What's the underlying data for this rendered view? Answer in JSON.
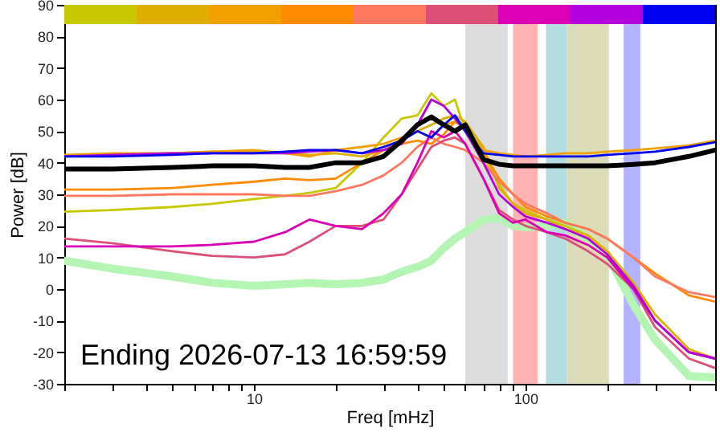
{
  "chart_data": {
    "type": "line",
    "xlabel": "Freq [mHz]",
    "ylabel": "Power [dB]",
    "log": "x",
    "annotations": [
      "Ending 2026-07-13 16:59:59"
    ],
    "xlim": [
      2,
      500
    ],
    "ylim": [
      -30,
      90
    ],
    "xticks": [
      {
        "value": 2,
        "label": null
      },
      {
        "value": 3,
        "label": null
      },
      {
        "value": 4,
        "label": null
      },
      {
        "value": 5,
        "label": null
      },
      {
        "value": 6,
        "label": null
      },
      {
        "value": 7,
        "label": null
      },
      {
        "value": 8,
        "label": null
      },
      {
        "value": 9,
        "label": null
      },
      10,
      {
        "value": 20,
        "label": null
      },
      {
        "value": 30,
        "label": null
      },
      {
        "value": 40,
        "label": null
      },
      {
        "value": 50,
        "label": null
      },
      {
        "value": 60,
        "label": null
      },
      {
        "value": 70,
        "label": null
      },
      {
        "value": 80,
        "label": null
      },
      {
        "value": 90,
        "label": null
      },
      100,
      {
        "value": 200,
        "label": null
      },
      {
        "value": 300,
        "label": null
      },
      {
        "value": 400,
        "label": null
      },
      {
        "value": 500,
        "label": null
      }
    ],
    "yticks": [
      -30,
      -20,
      -10,
      0,
      10,
      20,
      30,
      40,
      50,
      60,
      70,
      80,
      90
    ],
    "bands": [
      {
        "axis": "x",
        "from": 60,
        "to": 86,
        "color": "#dcdcdc"
      },
      {
        "axis": "x",
        "from": 90,
        "to": 111,
        "color": "#ffb3b3"
      },
      {
        "axis": "x",
        "from": 119,
        "to": 142,
        "color": "#b3dde0"
      },
      {
        "axis": "x",
        "from": 142,
        "to": 203,
        "color": "#dcdcb8"
      },
      {
        "axis": "x",
        "from": 230,
        "to": 265,
        "color": "#b3b3ff"
      }
    ],
    "x": [
      2,
      3,
      5,
      7,
      10,
      13,
      16,
      20,
      25,
      30,
      35,
      40,
      45,
      50,
      55,
      60,
      70,
      80,
      90,
      100,
      120,
      140,
      170,
      200,
      250,
      300,
      400,
      500
    ],
    "series": [
      {
        "color": "#b4f5b4",
        "values": [
          9,
          6.5,
          4,
          2,
          1,
          1.5,
          2,
          1.5,
          2,
          3,
          5.5,
          7,
          9,
          13,
          16,
          18,
          22,
          22.5,
          20,
          19.5,
          20,
          21,
          16,
          11,
          -5,
          -16,
          -27.5,
          -28
        ]
      },
      {
        "color": "#c8c800",
        "values": [
          24.5,
          25,
          26,
          27,
          28.5,
          29.5,
          30.5,
          32,
          40,
          48,
          54,
          55,
          62,
          58,
          60,
          50,
          42,
          33,
          27,
          25,
          22,
          20,
          17,
          12,
          2,
          -10,
          -20,
          -22
        ]
      },
      {
        "color": "#dcaf00",
        "values": [
          42,
          42.5,
          43,
          43.5,
          43.5,
          43,
          42.5,
          43,
          42,
          44,
          47,
          50,
          52,
          54,
          55,
          53,
          45,
          32,
          27,
          24,
          22,
          19,
          17,
          12,
          2,
          -8,
          -19,
          -22
        ]
      },
      {
        "color": "#f0a000",
        "values": [
          42.5,
          43,
          43,
          43.5,
          44,
          43,
          42,
          44,
          45,
          46,
          48,
          50,
          48,
          52,
          53,
          51,
          44,
          43,
          42.5,
          42,
          42.5,
          43,
          43,
          43.5,
          44,
          44.5,
          45.5,
          47
        ]
      },
      {
        "color": "#ff8c00",
        "values": [
          31.5,
          31.5,
          32,
          33,
          34,
          35,
          34.5,
          35,
          40,
          44,
          46,
          47,
          46,
          49,
          53,
          51,
          43,
          35,
          30,
          26,
          23,
          21,
          19,
          16,
          10,
          5,
          -2,
          -4
        ]
      },
      {
        "color": "#ff7860",
        "values": [
          29.5,
          29.5,
          30,
          30,
          30,
          29.5,
          29.5,
          31,
          33,
          36,
          40,
          45,
          48,
          46,
          45,
          44,
          40,
          34,
          30,
          27,
          24,
          21,
          19,
          16,
          10,
          4,
          -1,
          -2.5
        ]
      },
      {
        "color": "#dc5078",
        "values": [
          16,
          14.5,
          12,
          10.5,
          10,
          11,
          15,
          20,
          20,
          22,
          30,
          38,
          45,
          47,
          48,
          46,
          35,
          25,
          22,
          20,
          18,
          16,
          12,
          8,
          0,
          -12,
          -22,
          -25
        ]
      },
      {
        "color": "#dc00b4",
        "values": [
          13.5,
          13.5,
          13.5,
          14,
          15,
          18,
          22,
          20,
          19,
          24,
          30,
          40,
          50,
          48,
          50,
          46,
          35,
          24,
          21,
          22,
          18,
          17,
          14,
          10,
          0,
          -10,
          -20,
          -22
        ]
      },
      {
        "color": "#b400dc",
        "values": [
          42,
          42.5,
          43,
          43,
          43,
          43,
          43.5,
          44,
          43,
          44,
          46,
          52,
          60,
          58,
          54,
          50,
          40,
          30,
          26,
          23,
          21,
          19,
          16,
          11,
          1,
          -10,
          -20,
          -22
        ]
      },
      {
        "color": "#0000f0",
        "values": [
          42,
          42,
          42.5,
          43,
          43,
          43.5,
          44,
          44,
          43,
          45,
          47,
          50,
          48,
          52,
          55,
          50,
          43,
          42.5,
          42,
          42,
          42,
          42,
          42,
          42.5,
          43,
          43.5,
          45,
          46.5
        ]
      },
      {
        "color": "#000000",
        "values": [
          38,
          38,
          38.5,
          39,
          39,
          38.5,
          38.5,
          40,
          40,
          42,
          47,
          52,
          54.5,
          52,
          50,
          52,
          41,
          39.5,
          39,
          39,
          39,
          39,
          39,
          39,
          39.5,
          40,
          42,
          44
        ]
      }
    ]
  }
}
